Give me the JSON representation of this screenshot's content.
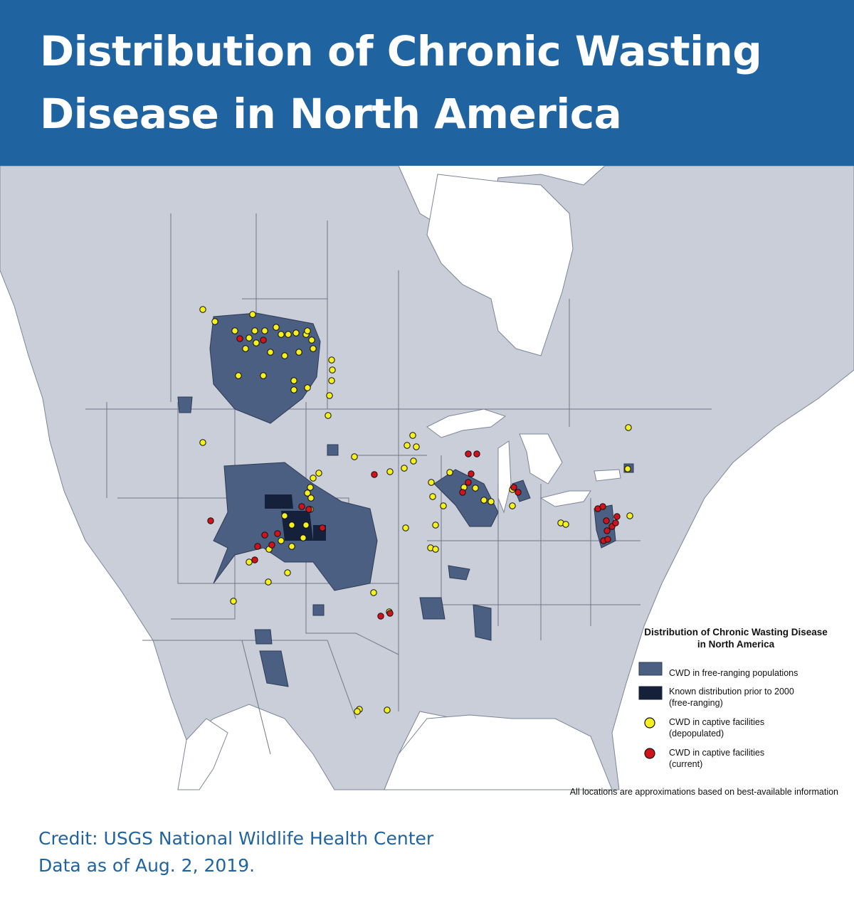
{
  "header": {
    "title": "Distribution of Chronic Wasting Disease in North America"
  },
  "legend": {
    "title": "Distribution of Chronic Wasting Disease\nin North America",
    "items": [
      {
        "label": "CWD in free-ranging populations",
        "icon": "square",
        "color": "#4b5f82"
      },
      {
        "label": "Known distribution prior to 2000\n(free-ranging)",
        "icon": "square",
        "color": "#15213a"
      },
      {
        "label": "CWD in captive facilities\n(depopulated)",
        "icon": "circle",
        "color": "#f5f01e"
      },
      {
        "label": "CWD in captive facilities\n(current)",
        "icon": "circle",
        "color": "#d0121b"
      }
    ]
  },
  "disclaimer": "All locations are approximations based on best-available information",
  "credit": {
    "line1": "Credit: USGS National Wildlife Health Center",
    "line2": "Data as of Aug. 2, 2019."
  },
  "colors": {
    "banner": "#1f63a1",
    "land": "#c9ced9",
    "water": "#ffffff",
    "border": "#6f7787",
    "free_ranging": "#4b5f82",
    "pre2000": "#15213a",
    "depopulated": "#f5f01e",
    "current": "#d0121b",
    "credit_text": "#1f63a1"
  }
}
